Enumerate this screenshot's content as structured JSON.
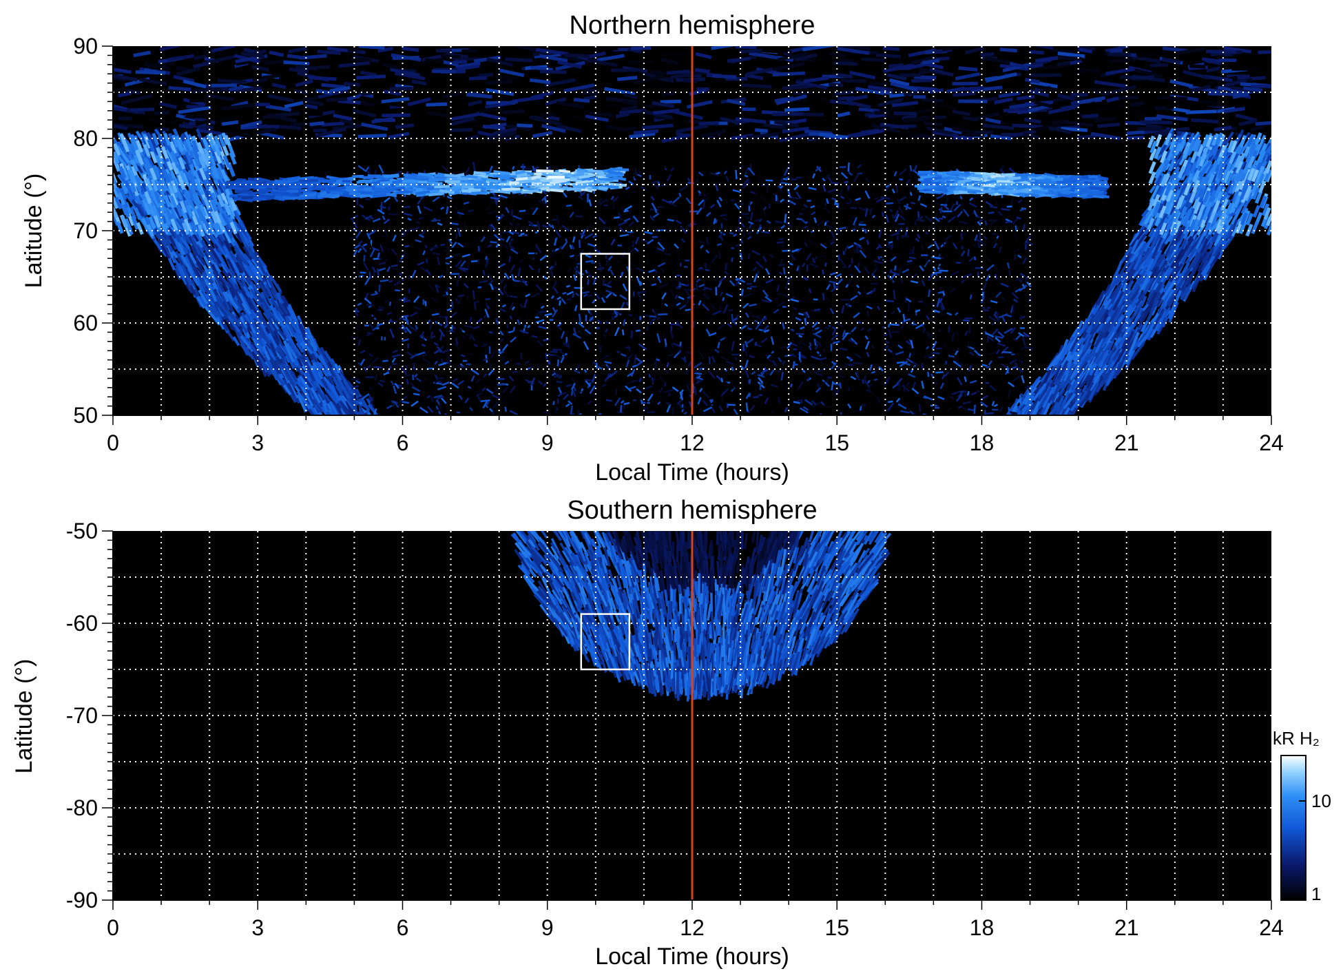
{
  "chart_data": [
    {
      "type": "heatmap",
      "title": "Northern hemisphere",
      "xlabel": "Local Time (hours)",
      "ylabel": "Latitude (°)",
      "xlim": [
        0,
        24
      ],
      "ylim": [
        50,
        90
      ],
      "xticks": [
        "0",
        "3",
        "6",
        "9",
        "12",
        "15",
        "18",
        "21",
        "24"
      ],
      "yticks": [
        "50",
        "60",
        "70",
        "80",
        "90"
      ],
      "grid": true,
      "background": "#000000",
      "colormap": [
        "#000000",
        "#0a1a6e",
        "#1158d8",
        "#2f8ff5",
        "#8fd0ff",
        "#ffffff"
      ],
      "noon_line": {
        "x": 12,
        "color": "#d8451c"
      },
      "box": {
        "x": [
          9.7,
          10.7
        ],
        "y": [
          61.5,
          67.5
        ]
      },
      "features": {
        "polar_cap_noise": {
          "lat": [
            80,
            90
          ],
          "intensity": 0.45
        },
        "main_oval_left": {
          "lt_top": [
            0,
            2.2
          ],
          "lt_bottom": [
            4.2,
            5.5
          ],
          "lat_top": 80,
          "lat_bottom": 50,
          "intensity": 0.7
        },
        "main_oval_right": {
          "lt_top": [
            21.8,
            24
          ],
          "lt_bottom": [
            18.5,
            19.8
          ],
          "lat_top": 80,
          "lat_bottom": 50,
          "intensity": 0.7
        },
        "bright_arc_morning": {
          "lt": [
            2.5,
            10.5
          ],
          "lat": 75,
          "intensity": 1.0
        },
        "bright_arc_evening": {
          "lt": [
            16.8,
            20.5
          ],
          "lat": 75,
          "intensity": 0.95
        },
        "inner_scatter": {
          "lt": [
            5,
            19
          ],
          "lat": [
            50,
            77
          ],
          "intensity": 0.4
        }
      }
    },
    {
      "type": "heatmap",
      "title": "Southern hemisphere",
      "xlabel": "Local Time (hours)",
      "ylabel": "Latitude (°)",
      "xlim": [
        0,
        24
      ],
      "ylim": [
        -90,
        -50
      ],
      "xticks": [
        "0",
        "3",
        "6",
        "9",
        "12",
        "15",
        "18",
        "21",
        "24"
      ],
      "yticks": [
        "-50",
        "-60",
        "-70",
        "-80",
        "-90"
      ],
      "grid": true,
      "background": "#000000",
      "noon_line": {
        "x": 12,
        "color": "#d8451c"
      },
      "box": {
        "x": [
          9.7,
          10.7
        ],
        "y": [
          -65,
          -59
        ]
      },
      "features": {
        "oval_arc": {
          "lt_center": 12.2,
          "lt_half_width_top": 3.8,
          "lat_top": -50,
          "lat_bottom": -67,
          "intensity": 0.65
        },
        "inner_region": {
          "lt_center": 12.2,
          "lat_bottom": -56,
          "intensity": 0.25
        }
      }
    }
  ],
  "colorbar": {
    "label": "kR H₂",
    "ticks": [
      "10",
      "1"
    ],
    "scale": "log",
    "range": [
      1,
      30
    ]
  }
}
